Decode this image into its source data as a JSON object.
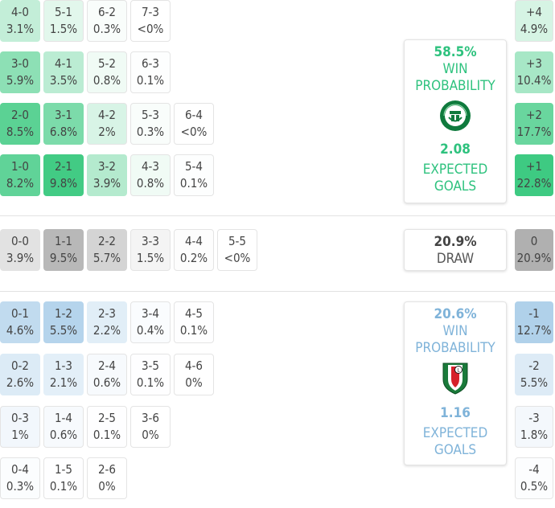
{
  "home": {
    "win_pct": "58.5%",
    "win_label_1": "WIN",
    "win_label_2": "PROBABILITY",
    "xg": "2.08",
    "xg_label_1": "EXPECTED",
    "xg_label_2": "GOALS",
    "color": "#2ec27e"
  },
  "draw": {
    "pct": "20.9%",
    "label": "DRAW"
  },
  "away": {
    "win_pct": "20.6%",
    "win_label_1": "WIN",
    "win_label_2": "PROBABILITY",
    "xg": "1.16",
    "xg_label_1": "EXPECTED",
    "xg_label_2": "GOALS",
    "color": "#7fb3d9"
  },
  "home_scores": [
    [
      {
        "s": "4-0",
        "p": "3.1%"
      },
      {
        "s": "5-1",
        "p": "1.5%"
      },
      {
        "s": "6-2",
        "p": "0.3%"
      },
      {
        "s": "7-3",
        "p": "<0%"
      }
    ],
    [
      {
        "s": "3-0",
        "p": "5.9%"
      },
      {
        "s": "4-1",
        "p": "3.5%"
      },
      {
        "s": "5-2",
        "p": "0.8%"
      },
      {
        "s": "6-3",
        "p": "0.1%"
      }
    ],
    [
      {
        "s": "2-0",
        "p": "8.5%"
      },
      {
        "s": "3-1",
        "p": "6.8%"
      },
      {
        "s": "4-2",
        "p": "2%"
      },
      {
        "s": "5-3",
        "p": "0.3%"
      },
      {
        "s": "6-4",
        "p": "<0%"
      }
    ],
    [
      {
        "s": "1-0",
        "p": "8.2%"
      },
      {
        "s": "2-1",
        "p": "9.8%"
      },
      {
        "s": "3-2",
        "p": "3.9%"
      },
      {
        "s": "4-3",
        "p": "0.8%"
      },
      {
        "s": "5-4",
        "p": "0.1%"
      }
    ]
  ],
  "draw_scores": [
    [
      {
        "s": "0-0",
        "p": "3.9%"
      },
      {
        "s": "1-1",
        "p": "9.5%"
      },
      {
        "s": "2-2",
        "p": "5.7%"
      },
      {
        "s": "3-3",
        "p": "1.5%"
      },
      {
        "s": "4-4",
        "p": "0.2%"
      },
      {
        "s": "5-5",
        "p": "<0%"
      }
    ]
  ],
  "away_scores": [
    [
      {
        "s": "0-1",
        "p": "4.6%"
      },
      {
        "s": "1-2",
        "p": "5.5%"
      },
      {
        "s": "2-3",
        "p": "2.2%"
      },
      {
        "s": "3-4",
        "p": "0.4%"
      },
      {
        "s": "4-5",
        "p": "0.1%"
      }
    ],
    [
      {
        "s": "0-2",
        "p": "2.6%"
      },
      {
        "s": "1-3",
        "p": "2.1%"
      },
      {
        "s": "2-4",
        "p": "0.6%"
      },
      {
        "s": "3-5",
        "p": "0.1%"
      },
      {
        "s": "4-6",
        "p": "0%"
      }
    ],
    [
      {
        "s": "0-3",
        "p": "1%"
      },
      {
        "s": "1-4",
        "p": "0.6%"
      },
      {
        "s": "2-5",
        "p": "0.1%"
      },
      {
        "s": "3-6",
        "p": "0%"
      }
    ],
    [
      {
        "s": "0-4",
        "p": "0.3%"
      },
      {
        "s": "1-5",
        "p": "0.1%"
      },
      {
        "s": "2-6",
        "p": "0%"
      }
    ]
  ],
  "home_margins": [
    {
      "s": "+4",
      "p": "4.9%"
    },
    {
      "s": "+3",
      "p": "10.4%"
    },
    {
      "s": "+2",
      "p": "17.7%"
    },
    {
      "s": "+1",
      "p": "22.8%"
    }
  ],
  "draw_margin": {
    "s": "0",
    "p": "20.9%"
  },
  "away_margins": [
    {
      "s": "-1",
      "p": "12.7%"
    },
    {
      "s": "-2",
      "p": "5.5%"
    },
    {
      "s": "-3",
      "p": "1.8%"
    },
    {
      "s": "-4",
      "p": "0.5%"
    }
  ]
}
